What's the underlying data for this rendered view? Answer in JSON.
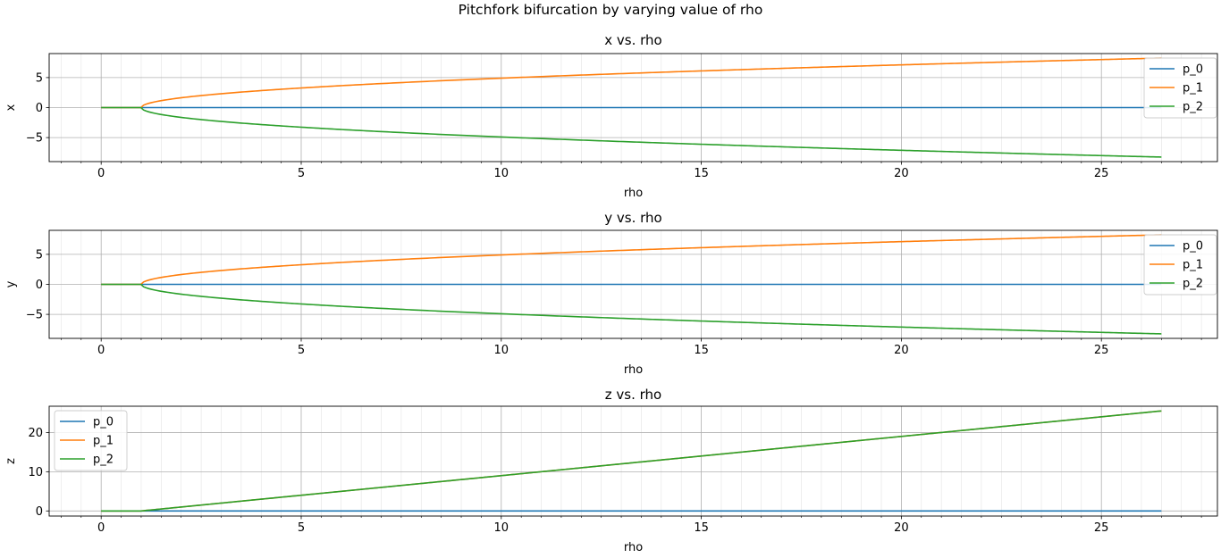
{
  "figure": {
    "suptitle": "Pitchfork bifurcation by varying value of rho"
  },
  "colors": {
    "p_0": "#1f77b4",
    "p_1": "#ff7f0e",
    "p_2": "#2ca02c",
    "grid_major": "#b0b0b0",
    "grid_minor": "#e4e4e4"
  },
  "chart_data": [
    {
      "type": "line",
      "title": "x vs. rho",
      "xlabel": "rho",
      "ylabel": "x",
      "xlim": [
        -1.3,
        27.9
      ],
      "ylim": [
        -9.0,
        9.0
      ],
      "xticks": [
        0,
        5,
        10,
        15,
        20,
        25
      ],
      "yticks": [
        -5,
        0,
        5
      ],
      "grid": "major and minor",
      "legend": "upper right",
      "x_range": [
        0,
        26.5
      ],
      "bifurcation_rho": 1,
      "series": [
        {
          "name": "p_0",
          "formula": "0",
          "points": [
            [
              0,
              0
            ],
            [
              26.5,
              0
            ]
          ]
        },
        {
          "name": "p_1",
          "formula": "sqrt(8/3*(rho-1))",
          "points": [
            [
              0,
              0
            ],
            [
              1,
              0
            ],
            [
              2,
              1.63
            ],
            [
              5,
              3.27
            ],
            [
              10,
              4.9
            ],
            [
              15,
              6.11
            ],
            [
              20,
              7.12
            ],
            [
              26.5,
              8.25
            ]
          ]
        },
        {
          "name": "p_2",
          "formula": "-sqrt(8/3*(rho-1))",
          "points": [
            [
              0,
              0
            ],
            [
              1,
              0
            ],
            [
              2,
              -1.63
            ],
            [
              5,
              -3.27
            ],
            [
              10,
              -4.9
            ],
            [
              15,
              -6.11
            ],
            [
              20,
              -7.12
            ],
            [
              26.5,
              -8.25
            ]
          ]
        }
      ]
    },
    {
      "type": "line",
      "title": "y vs. rho",
      "xlabel": "rho",
      "ylabel": "y",
      "xlim": [
        -1.3,
        27.9
      ],
      "ylim": [
        -9.0,
        9.0
      ],
      "xticks": [
        0,
        5,
        10,
        15,
        20,
        25
      ],
      "yticks": [
        -5,
        0,
        5
      ],
      "grid": "major and minor",
      "legend": "upper right",
      "x_range": [
        0,
        26.5
      ],
      "bifurcation_rho": 1,
      "series": [
        {
          "name": "p_0",
          "formula": "0",
          "points": [
            [
              0,
              0
            ],
            [
              26.5,
              0
            ]
          ]
        },
        {
          "name": "p_1",
          "formula": "sqrt(8/3*(rho-1))",
          "points": [
            [
              0,
              0
            ],
            [
              1,
              0
            ],
            [
              2,
              1.63
            ],
            [
              5,
              3.27
            ],
            [
              10,
              4.9
            ],
            [
              15,
              6.11
            ],
            [
              20,
              7.12
            ],
            [
              26.5,
              8.25
            ]
          ]
        },
        {
          "name": "p_2",
          "formula": "-sqrt(8/3*(rho-1))",
          "points": [
            [
              0,
              0
            ],
            [
              1,
              0
            ],
            [
              2,
              -1.63
            ],
            [
              5,
              -3.27
            ],
            [
              10,
              -4.9
            ],
            [
              15,
              -6.11
            ],
            [
              20,
              -7.12
            ],
            [
              26.5,
              -8.25
            ]
          ]
        }
      ]
    },
    {
      "type": "line",
      "title": "z vs. rho",
      "xlabel": "rho",
      "ylabel": "z",
      "xlim": [
        -1.3,
        27.9
      ],
      "ylim": [
        -1.3,
        26.7
      ],
      "xticks": [
        0,
        5,
        10,
        15,
        20,
        25
      ],
      "yticks": [
        0,
        10,
        20
      ],
      "grid": "major and minor",
      "legend": "upper left",
      "x_range": [
        0,
        26.5
      ],
      "bifurcation_rho": 1,
      "series": [
        {
          "name": "p_0",
          "formula": "0",
          "points": [
            [
              0,
              0
            ],
            [
              26.5,
              0
            ]
          ]
        },
        {
          "name": "p_1",
          "formula": "rho-1",
          "points": [
            [
              0,
              0
            ],
            [
              1,
              0
            ],
            [
              26.5,
              25.5
            ]
          ]
        },
        {
          "name": "p_2",
          "formula": "rho-1",
          "points": [
            [
              0,
              0
            ],
            [
              1,
              0
            ],
            [
              26.5,
              25.5
            ]
          ]
        }
      ]
    }
  ]
}
